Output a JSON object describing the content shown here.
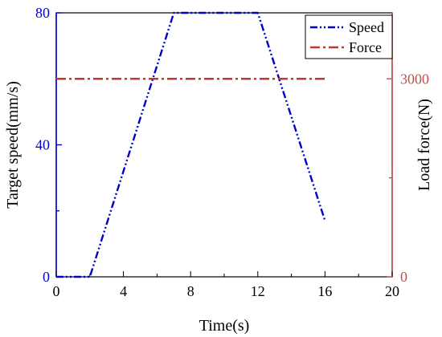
{
  "chart_data": {
    "type": "line",
    "xlabel": "Time(s)",
    "ylabel_left": "Target speed(mm/s)",
    "ylabel_right": "Load force(N)",
    "xlim": [
      0,
      20
    ],
    "ylim_left": [
      0,
      80
    ],
    "ylim_right": [
      0,
      4000
    ],
    "x_ticks": [
      "0",
      "4",
      "8",
      "12",
      "16",
      "20"
    ],
    "y_left_ticks": [
      "0",
      "40",
      "80"
    ],
    "y_right_ticks": [
      "0",
      "3000"
    ],
    "grid": false,
    "legend_position": "top-right",
    "colors": {
      "left_axis": "#0000cc",
      "right_axis": "#c0504d",
      "speed": "#0000cc",
      "force": "#c0392b"
    },
    "series": [
      {
        "name": "Speed",
        "axis": "left",
        "style": "dash-dot-dot",
        "x": [
          0,
          2,
          7,
          12,
          16
        ],
        "y": [
          0,
          0,
          80,
          80,
          17
        ]
      },
      {
        "name": "Force",
        "axis": "right",
        "style": "dash-dot",
        "x": [
          0,
          16
        ],
        "y": [
          3000,
          3000
        ]
      }
    ]
  }
}
